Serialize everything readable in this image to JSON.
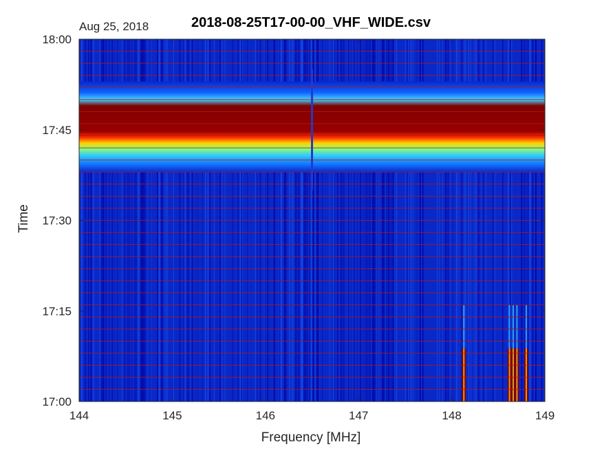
{
  "chart_data": {
    "type": "heatmap",
    "title": "2018-08-25T17-00-00_VHF_WIDE.csv",
    "date_label": "Aug 25, 2018",
    "xlabel": "Frequency [MHz]",
    "ylabel": "Time",
    "xlim": [
      144,
      149
    ],
    "ylim": [
      "17:00",
      "18:00"
    ],
    "x_ticks": [
      "144",
      "145",
      "146",
      "147",
      "148",
      "149"
    ],
    "y_ticks": [
      "17:00",
      "17:15",
      "17:30",
      "17:45",
      "18:00"
    ],
    "colormap": "jet",
    "colors": {
      "low": "#00008f",
      "background": "#0a28c8",
      "high": "#800000",
      "sweep_lines": "#b01818"
    },
    "features": [
      {
        "label": "wideband interference band",
        "time_start": "17:38",
        "time_end": "17:53",
        "freq_start": 144.0,
        "freq_end": 149.0
      },
      {
        "label": "narrowband bursts",
        "time_start": "17:00",
        "time_end": "17:16",
        "freq_start": 148.1,
        "freq_end": 148.9
      },
      {
        "label": "carrier line",
        "freq": 146.5,
        "time_start": "17:35",
        "time_end": "17:55"
      }
    ],
    "grid": false
  }
}
